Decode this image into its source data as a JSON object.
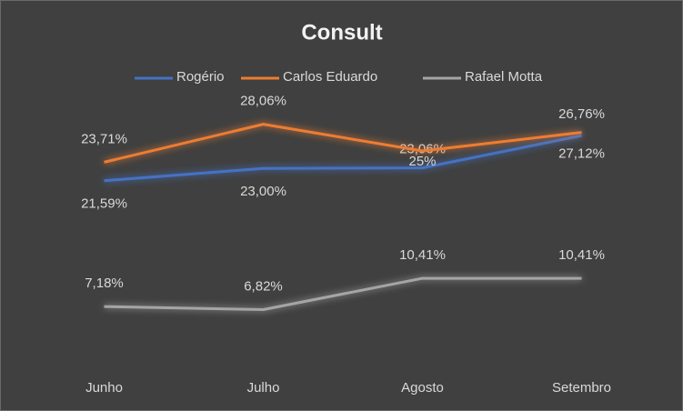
{
  "chart_data": {
    "type": "line",
    "title": "Consult",
    "categories": [
      "Junho",
      "Julho",
      "Agosto",
      "Setembro"
    ],
    "ylim": [
      0,
      35
    ],
    "series": [
      {
        "name": "Rogério",
        "color": "#4472c4",
        "values": [
          21.59,
          23.0,
          23.06,
          26.76
        ],
        "value_labels": [
          "21,59%",
          "23,00%",
          "23,06%",
          "26,76%"
        ]
      },
      {
        "name": "Carlos Eduardo",
        "color": "#ed7d31",
        "values": [
          23.71,
          28.06,
          25,
          27.12
        ],
        "value_labels": [
          "23,71%",
          "28,06%",
          "25%",
          "27,12%"
        ]
      },
      {
        "name": "Rafael Motta",
        "color": "#a5a5a5",
        "values": [
          7.18,
          6.82,
          10.41,
          10.41
        ],
        "value_labels": [
          "7,18%",
          "6,82%",
          "10,41%",
          "10,41%"
        ]
      }
    ]
  }
}
